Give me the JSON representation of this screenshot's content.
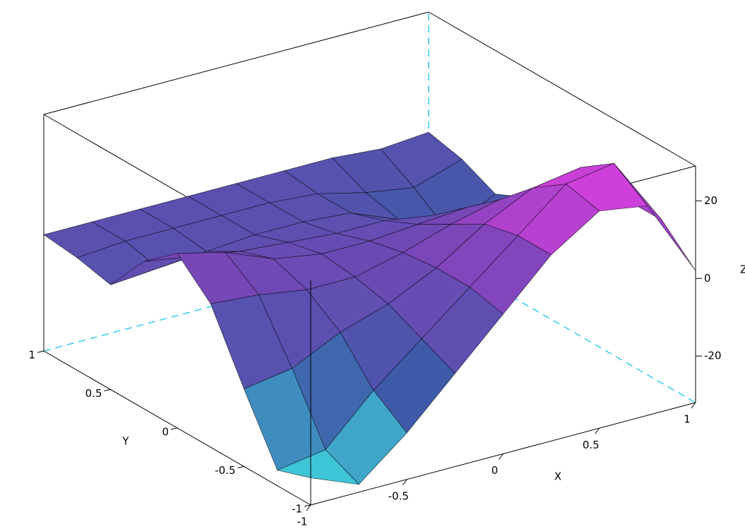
{
  "chart_data": {
    "type": "surface3d",
    "x_label": "X",
    "y_label": "Y",
    "z_label": "Z",
    "x": [
      -1,
      -0.75,
      -0.5,
      -0.25,
      0,
      0.25,
      0.5,
      0.75,
      1
    ],
    "y": [
      -1,
      -0.75,
      -0.5,
      -0.25,
      0,
      0.25,
      0.5,
      0.75,
      1
    ],
    "z": [
      [
        -25,
        -30,
        -20,
        -8,
        4,
        16,
        24,
        22,
        2
      ],
      [
        -28,
        -26,
        -14,
        -4,
        6,
        16,
        26,
        28,
        10
      ],
      [
        -12,
        -10,
        -4,
        0,
        6,
        14,
        20,
        22,
        10
      ],
      [
        5,
        4,
        2,
        2,
        5,
        9,
        12,
        12,
        6
      ],
      [
        13,
        10,
        5,
        3,
        3,
        4,
        5,
        4,
        2
      ],
      [
        6,
        4,
        2,
        1,
        0,
        0,
        -2,
        -6,
        -4
      ],
      [
        -5,
        -4,
        -3,
        -2,
        -2,
        -3,
        -8,
        -14,
        -8
      ],
      [
        -3,
        -2,
        -2,
        -2,
        -2,
        -3,
        -6,
        -8,
        -4
      ],
      [
        -2,
        -2,
        -2,
        -2,
        -2,
        -2,
        -2,
        -3,
        -2
      ]
    ],
    "xlim": [
      -1,
      1
    ],
    "ylim": [
      -1,
      1
    ],
    "zlim": [
      -32,
      29
    ],
    "xticks": [
      -1,
      -0.5,
      0,
      0.5,
      1
    ],
    "yticks": [
      -1,
      -0.5,
      0,
      0.5,
      1
    ],
    "zticks": [
      -20,
      0,
      20
    ],
    "colormap": [
      "#3fe6e6",
      "#3f5aa8",
      "#7a46b8",
      "#e23ee2"
    ],
    "box_color": "#000000",
    "hidden_edge_color": "#33ccee"
  }
}
